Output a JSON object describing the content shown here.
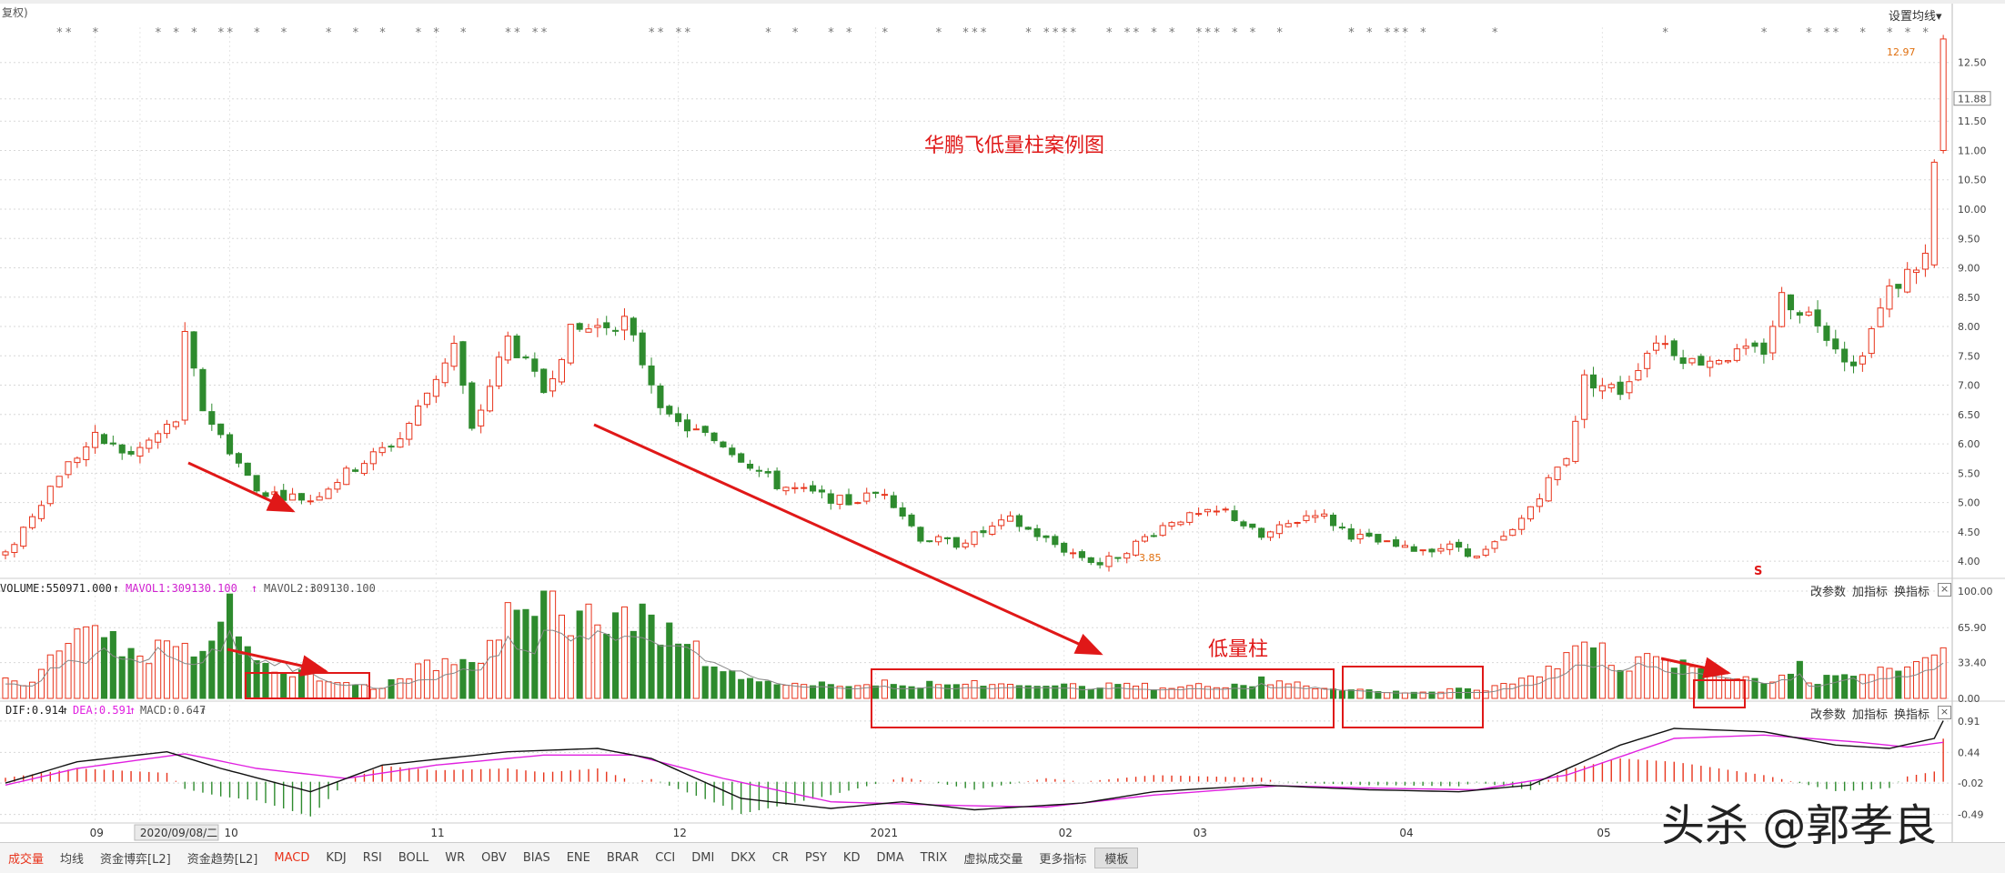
{
  "header": {
    "left_label": "复权)",
    "settings_label": "设置均线",
    "volume_label": "VOLUME:550971.000",
    "mavol1_label": "MAVOL1:309130.100",
    "mavol2_label": "MAVOL2:309130.100",
    "dif_label": "DIF:0.914",
    "dea_label": "DEA:0.591",
    "macd_label": "MACD:0.647"
  },
  "panel_buttons": {
    "change_params": "改参数",
    "add_indicator": "加指标",
    "switch_indicator": "换指标",
    "close": "×"
  },
  "annotations": {
    "main_title": "华鹏飞低量柱案例图",
    "low_volume_label": "低量柱",
    "high_price_label": "12.97",
    "low_price_label": "3.85",
    "s_marker": "S",
    "watermark": "头杀 @郭孝良"
  },
  "colors": {
    "up": "#e8341c",
    "down": "#2e8b2e",
    "annotation": "#e01818",
    "mavol": "#d020d0",
    "dea": "#e020e0",
    "dif": "#111111"
  },
  "x_axis": {
    "labels": [
      "09",
      "2020/09/08/二",
      "10",
      "11",
      "12",
      "2021",
      "02",
      "03",
      "04",
      "05"
    ]
  },
  "price_axis_labels": [
    "12.50",
    "11.88",
    "11.50",
    "11.00",
    "10.50",
    "10.00",
    "9.50",
    "9.00",
    "8.50",
    "8.00",
    "7.50",
    "7.00",
    "6.50",
    "6.00",
    "5.50",
    "5.00",
    "4.50",
    "4.00"
  ],
  "volume_axis_labels": [
    "100.00",
    "65.90",
    "33.40",
    "0.00"
  ],
  "macd_axis_labels": [
    "0.91",
    "0.44",
    "-0.02",
    "-0.49"
  ],
  "tabs": [
    {
      "label": "成交量",
      "active": true
    },
    {
      "label": "均线"
    },
    {
      "label": "资金博弈[L2]"
    },
    {
      "label": "资金趋势[L2]"
    },
    {
      "label": "MACD",
      "active": true
    },
    {
      "label": "KDJ"
    },
    {
      "label": "RSI"
    },
    {
      "label": "BOLL"
    },
    {
      "label": "WR"
    },
    {
      "label": "OBV"
    },
    {
      "label": "BIAS"
    },
    {
      "label": "ENE"
    },
    {
      "label": "BRAR"
    },
    {
      "label": "CCI"
    },
    {
      "label": "DMI"
    },
    {
      "label": "DKX"
    },
    {
      "label": "CR"
    },
    {
      "label": "PSY"
    },
    {
      "label": "KD"
    },
    {
      "label": "DMA"
    },
    {
      "label": "TRIX"
    },
    {
      "label": "虚拟成交量"
    },
    {
      "label": "更多指标"
    },
    {
      "label": "模板",
      "boxed": true
    }
  ],
  "chart_data": {
    "type": "candlestick",
    "ylim": [
      3.8,
      13.1
    ],
    "volume_ylim": [
      0,
      100
    ],
    "macd_ylim": [
      -0.55,
      0.95
    ],
    "x_months": [
      {
        "label": "09",
        "index": 10
      },
      {
        "label": "2020/09/08/二",
        "index": 15
      },
      {
        "label": "10",
        "index": 25
      },
      {
        "label": "11",
        "index": 48
      },
      {
        "label": "12",
        "index": 75
      },
      {
        "label": "2021",
        "index": 97
      },
      {
        "label": "02",
        "index": 118
      },
      {
        "label": "03",
        "index": 133
      },
      {
        "label": "04",
        "index": 156
      },
      {
        "label": "05",
        "index": 178
      }
    ],
    "price_anchors": [
      [
        0,
        4.1
      ],
      [
        6,
        5.5
      ],
      [
        10,
        6.1
      ],
      [
        14,
        5.8
      ],
      [
        19,
        6.4
      ],
      [
        20,
        7.8
      ],
      [
        22,
        6.6
      ],
      [
        28,
        5.2
      ],
      [
        34,
        5.05
      ],
      [
        38,
        5.5
      ],
      [
        44,
        6.1
      ],
      [
        46,
        6.6
      ],
      [
        50,
        7.7
      ],
      [
        52,
        6.2
      ],
      [
        56,
        7.8
      ],
      [
        60,
        6.9
      ],
      [
        63,
        7.9
      ],
      [
        69,
        8.1
      ],
      [
        71,
        7.4
      ],
      [
        74,
        6.4
      ],
      [
        80,
        6.0
      ],
      [
        86,
        5.3
      ],
      [
        94,
        5.0
      ],
      [
        98,
        5.2
      ],
      [
        102,
        4.4
      ],
      [
        106,
        4.3
      ],
      [
        112,
        4.7
      ],
      [
        118,
        4.2
      ],
      [
        122,
        3.95
      ],
      [
        124,
        4.1
      ],
      [
        130,
        4.7
      ],
      [
        136,
        4.85
      ],
      [
        140,
        4.4
      ],
      [
        146,
        4.85
      ],
      [
        150,
        4.45
      ],
      [
        156,
        4.2
      ],
      [
        162,
        4.25
      ],
      [
        164,
        4.05
      ],
      [
        168,
        4.5
      ],
      [
        174,
        5.8
      ],
      [
        176,
        7.1
      ],
      [
        180,
        6.9
      ],
      [
        184,
        7.8
      ],
      [
        188,
        7.4
      ],
      [
        196,
        7.6
      ],
      [
        198,
        8.5
      ],
      [
        202,
        8.1
      ],
      [
        206,
        7.3
      ],
      [
        210,
        8.6
      ],
      [
        214,
        9.2
      ],
      [
        215,
        10.8
      ],
      [
        216,
        12.9
      ]
    ],
    "volume_pattern": [
      18,
      14,
      24,
      48,
      62,
      58,
      70,
      55,
      42,
      38,
      60,
      52,
      44,
      48,
      62,
      100,
      60,
      40,
      30,
      20,
      28,
      18,
      16,
      14,
      12,
      10,
      16,
      22,
      28,
      30,
      36,
      44,
      38,
      62,
      98,
      70,
      64,
      96,
      72,
      82,
      78,
      72,
      80,
      74,
      68,
      62,
      58,
      48,
      36,
      28,
      22,
      18,
      16,
      14,
      12,
      12,
      14,
      12,
      12,
      14,
      16,
      12,
      12,
      14,
      12,
      12,
      14,
      12,
      14,
      14,
      12,
      14,
      12,
      12,
      10,
      12,
      14,
      12,
      12,
      10,
      10,
      12,
      12,
      12,
      14,
      12,
      22,
      14,
      14,
      12,
      10,
      10,
      8,
      8,
      6,
      6,
      6,
      6,
      6,
      8,
      8,
      8,
      10,
      14,
      20,
      24,
      32,
      40,
      52,
      46,
      36,
      30,
      40,
      36,
      32,
      30,
      28,
      24,
      22,
      20,
      18,
      16,
      24,
      36,
      14,
      18,
      22,
      20,
      24,
      28,
      30,
      34,
      40,
      52
    ],
    "macd_dif_anchors": [
      [
        0,
        -0.02
      ],
      [
        8,
        0.3
      ],
      [
        18,
        0.45
      ],
      [
        24,
        0.2
      ],
      [
        34,
        -0.15
      ],
      [
        42,
        0.25
      ],
      [
        56,
        0.45
      ],
      [
        66,
        0.5
      ],
      [
        72,
        0.35
      ],
      [
        82,
        -0.25
      ],
      [
        92,
        -0.4
      ],
      [
        100,
        -0.3
      ],
      [
        108,
        -0.42
      ],
      [
        120,
        -0.32
      ],
      [
        128,
        -0.15
      ],
      [
        140,
        -0.05
      ],
      [
        152,
        -0.12
      ],
      [
        162,
        -0.15
      ],
      [
        170,
        -0.05
      ],
      [
        180,
        0.55
      ],
      [
        186,
        0.8
      ],
      [
        196,
        0.75
      ],
      [
        204,
        0.55
      ],
      [
        210,
        0.5
      ],
      [
        215,
        0.65
      ],
      [
        216,
        0.914
      ]
    ],
    "macd_dea_anchors": [
      [
        0,
        -0.05
      ],
      [
        8,
        0.2
      ],
      [
        20,
        0.42
      ],
      [
        28,
        0.2
      ],
      [
        38,
        0.05
      ],
      [
        48,
        0.25
      ],
      [
        60,
        0.4
      ],
      [
        70,
        0.4
      ],
      [
        80,
        0.05
      ],
      [
        92,
        -0.3
      ],
      [
        104,
        -0.35
      ],
      [
        116,
        -0.38
      ],
      [
        128,
        -0.2
      ],
      [
        142,
        -0.06
      ],
      [
        154,
        -0.1
      ],
      [
        164,
        -0.12
      ],
      [
        174,
        0.1
      ],
      [
        186,
        0.65
      ],
      [
        196,
        0.7
      ],
      [
        206,
        0.6
      ],
      [
        212,
        0.52
      ],
      [
        216,
        0.591
      ]
    ]
  }
}
